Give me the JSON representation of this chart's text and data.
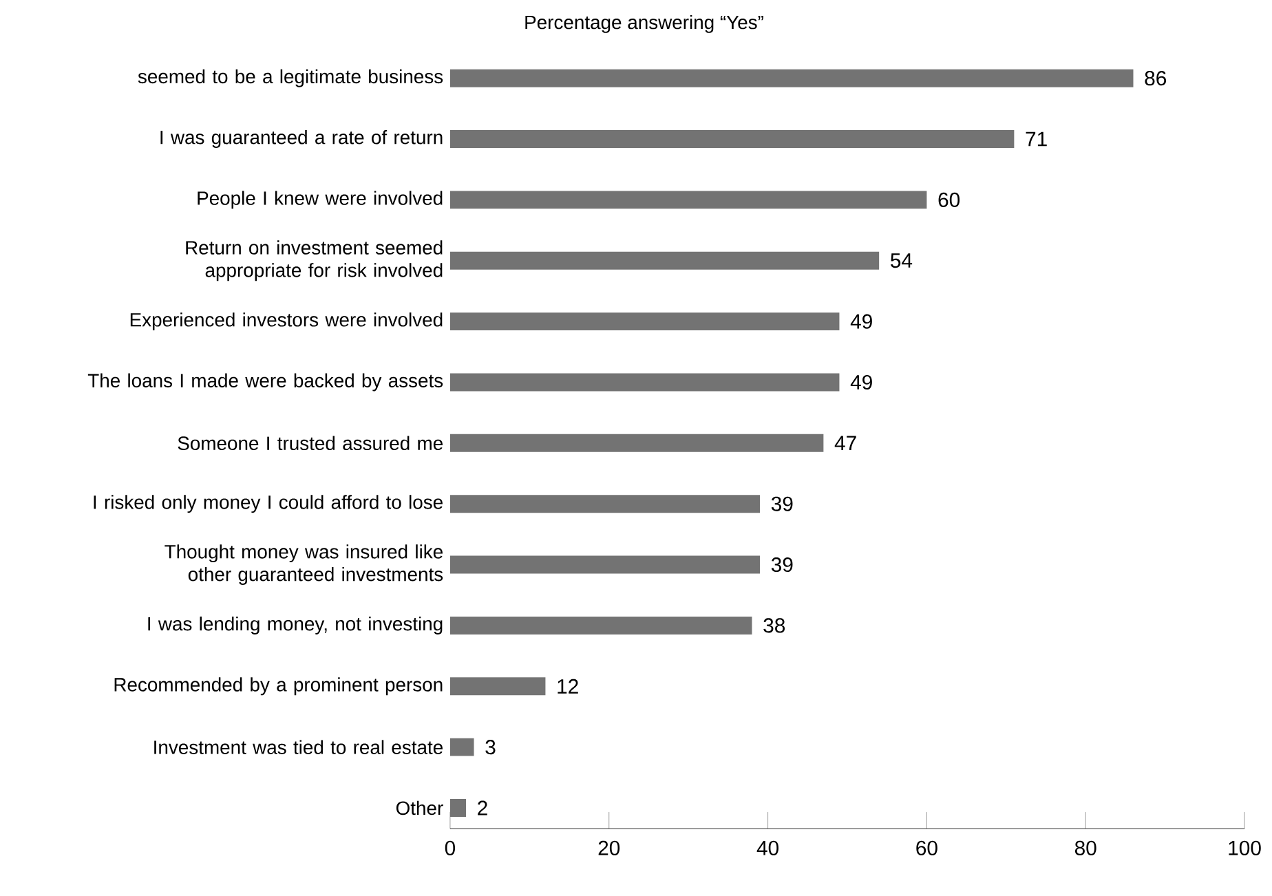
{
  "chart_data": {
    "type": "bar",
    "orientation": "horizontal",
    "title": "Percentage answering “Yes”",
    "categories": [
      "seemed to be a legitimate business",
      "I was guaranteed a rate of return",
      "People I knew were involved",
      "Return on investment seemed appropriate for risk involved",
      "Experienced investors were involved",
      "The loans I made were backed by assets",
      "Someone I trusted assured me",
      "I risked only money I could afford to lose",
      "Thought money was insured like other guaranteed investments",
      "I was lending money, not investing",
      "Recommended by a prominent person",
      "Investment was tied to real estate",
      "Other"
    ],
    "values": [
      86,
      71,
      60,
      54,
      49,
      49,
      47,
      39,
      39,
      38,
      12,
      3,
      2
    ],
    "color": "#737373",
    "data_labels": true,
    "xlim": [
      0,
      100
    ],
    "xticks": [
      0,
      20,
      40,
      60,
      80,
      100
    ]
  }
}
